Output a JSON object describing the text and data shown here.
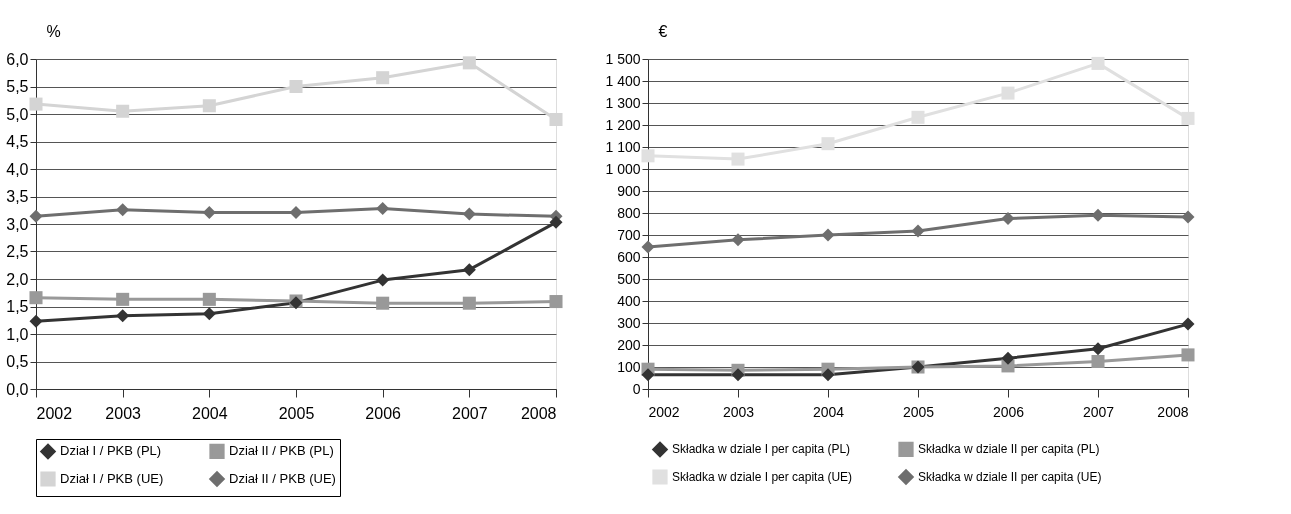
{
  "chart_data": [
    {
      "type": "line",
      "ylabel": "%",
      "categories": [
        "2002",
        "2003",
        "2004",
        "2005",
        "2006",
        "2007",
        "2008"
      ],
      "ylim": [
        0,
        6
      ],
      "yticks": [
        {
          "value": 0,
          "label": "0,0"
        },
        {
          "value": 0.5,
          "label": "0,5"
        },
        {
          "value": 1,
          "label": "1,0"
        },
        {
          "value": 1.5,
          "label": "1,5"
        },
        {
          "value": 2,
          "label": "2,0"
        },
        {
          "value": 2.5,
          "label": "2,5"
        },
        {
          "value": 3,
          "label": "3,0"
        },
        {
          "value": 3.5,
          "label": "3,5"
        },
        {
          "value": 4,
          "label": "4,0"
        },
        {
          "value": 4.5,
          "label": "4,5"
        },
        {
          "value": 5,
          "label": "5,0"
        },
        {
          "value": 5.5,
          "label": "5,5"
        },
        {
          "value": 6,
          "label": "6,0"
        }
      ],
      "grid": "y",
      "legend": "bottom",
      "line_style": "solid",
      "series": [
        {
          "name": "Dział I / PKB (PL)",
          "color": "#333333",
          "marker": "diamond",
          "values": [
            1.23,
            1.33,
            1.37,
            1.57,
            1.98,
            2.17,
            3.03
          ]
        },
        {
          "name": "Dział II / PKB (PL)",
          "color": "#999999",
          "marker": "square",
          "values": [
            1.66,
            1.63,
            1.63,
            1.6,
            1.56,
            1.56,
            1.59
          ]
        },
        {
          "name": "Dział I / PKB (UE)",
          "color": "#d4d4d4",
          "marker": "square",
          "values": [
            5.18,
            5.05,
            5.15,
            5.5,
            5.66,
            5.93,
            4.9
          ]
        },
        {
          "name": "Dział II / PKB (UE)",
          "color": "#6e6e6e",
          "marker": "diamond",
          "values": [
            3.14,
            3.26,
            3.21,
            3.21,
            3.28,
            3.18,
            3.14
          ]
        }
      ]
    },
    {
      "type": "line",
      "ylabel": "€",
      "categories": [
        "2002",
        "2003",
        "2004",
        "2005",
        "2006",
        "2007",
        "2008"
      ],
      "ylim": [
        0,
        1500
      ],
      "yticks": [
        0,
        100,
        200,
        300,
        400,
        500,
        600,
        700,
        800,
        900,
        {
          "value": 1000,
          "label": "1 000"
        },
        {
          "value": 1100,
          "label": "1 100"
        },
        {
          "value": 1200,
          "label": "1 200"
        },
        {
          "value": 1300,
          "label": "1 300"
        },
        {
          "value": 1400,
          "label": "1 400"
        },
        {
          "value": 1500,
          "label": "1 500"
        }
      ],
      "grid": "y",
      "legend": "bottom",
      "line_style": "solid",
      "series": [
        {
          "name": "Składka w dziale I per capita (PL)",
          "color": "#333333",
          "marker": "diamond",
          "values": [
            65,
            65,
            65,
            100,
            140,
            183,
            295
          ]
        },
        {
          "name": "Składka w dziale II per capita (PL)",
          "color": "#999999",
          "marker": "square",
          "values": [
            90,
            85,
            90,
            100,
            105,
            125,
            155
          ]
        },
        {
          "name": "Składka w dziale I per capita (UE)",
          "color": "#e0e0e0",
          "marker": "square",
          "values": [
            1060,
            1045,
            1115,
            1235,
            1345,
            1480,
            1230
          ]
        },
        {
          "name": "Składka w dziale II per capita (UE)",
          "color": "#6e6e6e",
          "marker": "diamond",
          "values": [
            645,
            678,
            700,
            718,
            775,
            790,
            782
          ]
        }
      ]
    }
  ]
}
